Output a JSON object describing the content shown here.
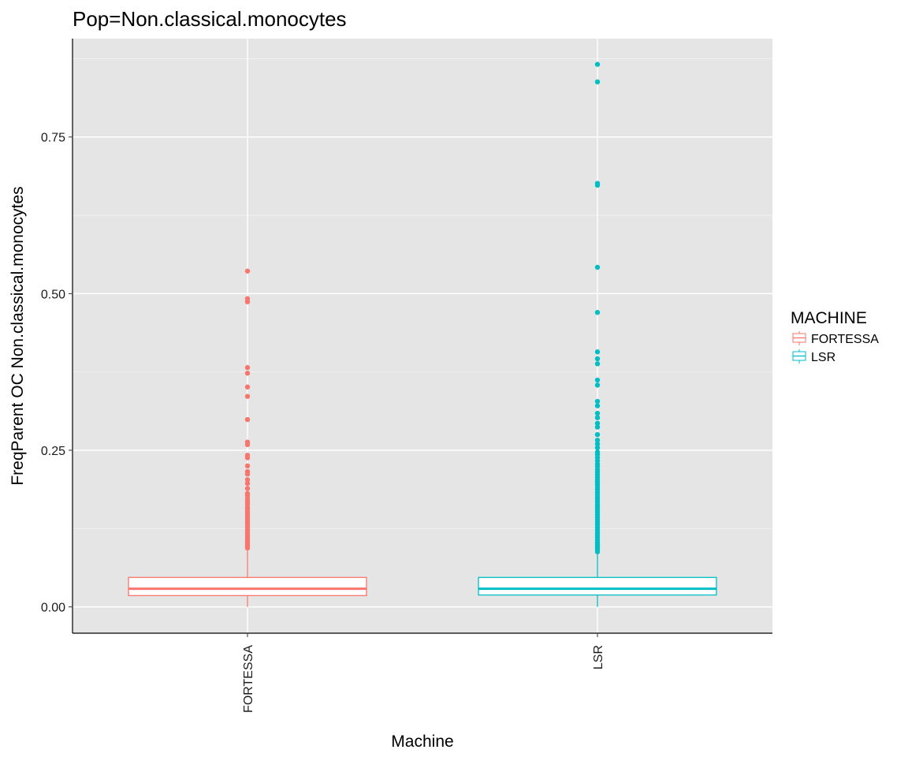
{
  "chart_data": {
    "type": "boxplot",
    "title": "Pop=Non.classical.monocytes",
    "xlabel": "Machine",
    "ylabel": "FreqParent OC  Non.classical.monocytes",
    "ylim": [
      -0.042,
      0.907
    ],
    "y_ticks": [
      0.0,
      0.25,
      0.5,
      0.75
    ],
    "y_tick_labels": [
      "0.00",
      "0.25",
      "0.50",
      "0.75"
    ],
    "categories": [
      "FORTESSA",
      "LSR"
    ],
    "grid": true,
    "legend": {
      "title": "MACHINE",
      "position": "right",
      "entries": [
        "FORTESSA",
        "LSR"
      ]
    },
    "colors": {
      "FORTESSA": "#F8766D",
      "LSR": "#00BFC4"
    },
    "boxes": [
      {
        "category": "FORTESSA",
        "min": 0.0,
        "q1": 0.018,
        "median": 0.029,
        "q3": 0.047,
        "whisker_high": 0.09,
        "outliers": [
          0.536,
          0.492,
          0.487,
          0.382,
          0.373,
          0.351,
          0.336,
          0.299,
          0.263,
          0.259,
          0.242,
          0.238,
          0.225,
          0.216,
          0.212,
          0.203,
          0.197,
          0.189,
          0.181,
          0.177,
          0.172,
          0.168,
          0.164,
          0.159,
          0.155,
          0.151,
          0.147,
          0.143,
          0.139,
          0.135,
          0.131,
          0.127,
          0.123,
          0.119,
          0.115,
          0.111,
          0.108,
          0.105,
          0.102,
          0.099,
          0.096,
          0.094
        ]
      },
      {
        "category": "LSR",
        "min": 0.0,
        "q1": 0.019,
        "median": 0.029,
        "q3": 0.047,
        "whisker_high": 0.085,
        "outliers": [
          0.866,
          0.838,
          0.676,
          0.673,
          0.542,
          0.47,
          0.407,
          0.396,
          0.388,
          0.362,
          0.354,
          0.328,
          0.321,
          0.309,
          0.302,
          0.293,
          0.287,
          0.275,
          0.266,
          0.26,
          0.254,
          0.247,
          0.243,
          0.238,
          0.233,
          0.228,
          0.224,
          0.219,
          0.215,
          0.211,
          0.207,
          0.203,
          0.199,
          0.195,
          0.191,
          0.187,
          0.183,
          0.179,
          0.175,
          0.171,
          0.167,
          0.163,
          0.159,
          0.155,
          0.151,
          0.147,
          0.143,
          0.139,
          0.135,
          0.131,
          0.127,
          0.123,
          0.119,
          0.115,
          0.111,
          0.107,
          0.103,
          0.1,
          0.097,
          0.094,
          0.091,
          0.088
        ]
      }
    ]
  }
}
